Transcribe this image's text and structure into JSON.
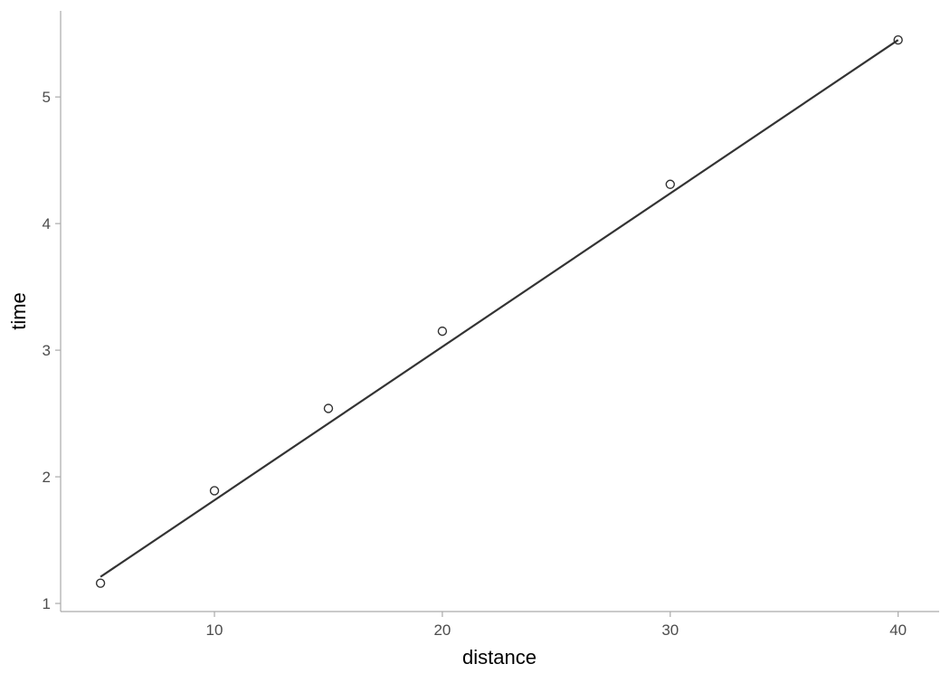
{
  "chart_data": {
    "type": "scatter",
    "title": "",
    "xlabel": "distance",
    "ylabel": "time",
    "xlim": [
      3.25,
      41.8
    ],
    "ylim": [
      0.936,
      5.68
    ],
    "x_ticks": [
      10,
      20,
      30,
      40
    ],
    "y_ticks": [
      1,
      2,
      3,
      4,
      5
    ],
    "grid": false,
    "points": [
      {
        "x": 5,
        "y": 1.16
      },
      {
        "x": 10,
        "y": 1.89
      },
      {
        "x": 15,
        "y": 2.54
      },
      {
        "x": 20,
        "y": 3.15
      },
      {
        "x": 30,
        "y": 4.31
      },
      {
        "x": 40,
        "y": 5.45
      }
    ],
    "fit_line": {
      "x": [
        5,
        40
      ],
      "y": [
        1.21,
        5.45
      ]
    },
    "colors": {
      "line": "#333333",
      "points": "#333333",
      "axis": "#aaaaaa",
      "text": "#4d4d4d"
    }
  }
}
